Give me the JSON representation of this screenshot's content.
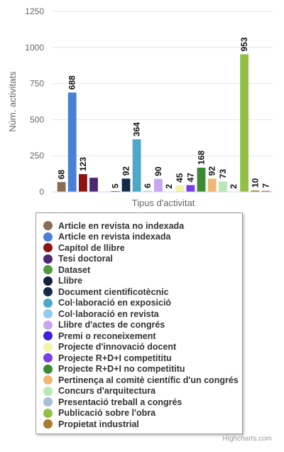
{
  "chart_data": {
    "type": "bar",
    "title": "",
    "xlabel": "Tipus d'activitat",
    "ylabel": "Núm. activitats",
    "ylim": [
      0,
      1250
    ],
    "yticks": [
      "0",
      "250",
      "500",
      "750",
      "1000",
      "1250"
    ],
    "grid": true,
    "legend_position": "bottom",
    "series": [
      {
        "name": "Article en revista no indexada",
        "value": 68,
        "color": "#8b6b55"
      },
      {
        "name": "Article en revista indexada",
        "value": 688,
        "color": "#4a7fd6"
      },
      {
        "name": "Capítol de llibre",
        "value": 123,
        "color": "#8e1414"
      },
      {
        "name": "Tesi doctoral",
        "value": 98,
        "color": "#4c2870"
      },
      {
        "name": "Dataset",
        "value": null,
        "color": "#4f9a3f"
      },
      {
        "name": "Llibre",
        "value": 5,
        "color": "#13233f"
      },
      {
        "name": "Document cientificotècnic",
        "value": 92,
        "color": "#152b4a"
      },
      {
        "name": "Col·laboració en exposició",
        "value": 364,
        "color": "#4ea9c9"
      },
      {
        "name": "Col·laboració en revista",
        "value": 6,
        "color": "#91cdf0"
      },
      {
        "name": "Llibre d'actes de congrés",
        "value": 90,
        "color": "#c8a6f0"
      },
      {
        "name": "Premi o reconeixement",
        "value": 2,
        "color": "#3f1ee0"
      },
      {
        "name": "Projecte d'innovació docent",
        "value": 45,
        "color": "#f3f4a8"
      },
      {
        "name": "Projecte R+D+I competititu",
        "value": 47,
        "color": "#7a3fe2"
      },
      {
        "name": "Projecte R+D+I no competititu",
        "value": 168,
        "color": "#3d8a35"
      },
      {
        "name": "Pertinença al comitè científic d'un congrés",
        "value": 92,
        "color": "#efb875"
      },
      {
        "name": "Concurs d'arquitectura",
        "value": 73,
        "color": "#b8e8b8"
      },
      {
        "name": "Presentació treball a congrés",
        "value": 2,
        "color": "#a9bed8"
      },
      {
        "name": "Publicació sobre l'obra",
        "value": 953,
        "color": "#92bf45"
      },
      {
        "name": "Propietat industrial",
        "value": 10,
        "color": "#a87c2a"
      },
      {
        "name": "",
        "value": 7,
        "color": "#c23838"
      }
    ],
    "bar_labels": [
      "68",
      "688",
      "123",
      "",
      "",
      "5",
      "92",
      "364",
      "6",
      "90",
      "2",
      "45",
      "47",
      "168",
      "92",
      "73",
      "2",
      "953",
      "10",
      "7"
    ]
  },
  "credits": "Highcharts.com"
}
